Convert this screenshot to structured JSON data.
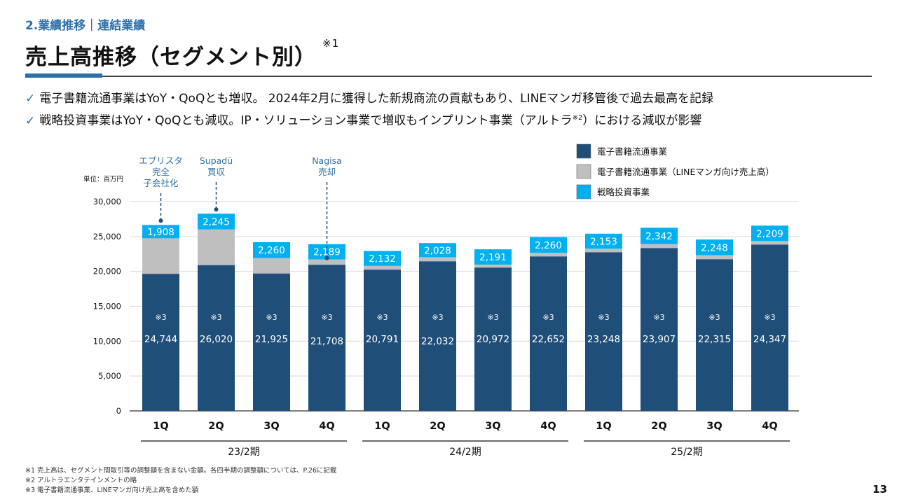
{
  "header": {
    "section": "2.業績推移｜連結業績",
    "title": "売上高推移（セグメント別）",
    "title_note": "※1"
  },
  "bullets": [
    {
      "check": "✓",
      "text": "電子書籍流通事業はYoY・QoQとも増収。 2024年2月に獲得した新規商流の貢献もあり、LINEマンガ移管後で過去最高を記録"
    },
    {
      "check": "✓",
      "text": "戦略投資事業はYoY・QoQとも減収。IP・ソリューション事業で増収もインプリント事業（アルトラ",
      "sup": "※2",
      "tail": "）における減収が影響"
    }
  ],
  "chart_data": {
    "type": "bar",
    "stacked": true,
    "unit_label": "単位：百万円",
    "ylim": [
      0,
      30000
    ],
    "yticks": [
      0,
      5000,
      10000,
      15000,
      20000,
      25000,
      30000
    ],
    "ytick_labels": [
      "0",
      "5,000",
      "10,000",
      "15,000",
      "20,000",
      "25,000",
      "30,000"
    ],
    "categories": [
      "1Q",
      "2Q",
      "3Q",
      "4Q",
      "1Q",
      "2Q",
      "3Q",
      "4Q",
      "1Q",
      "2Q",
      "3Q",
      "4Q"
    ],
    "periods": [
      {
        "label": "23/2期",
        "start": 0,
        "end": 3
      },
      {
        "label": "24/2期",
        "start": 4,
        "end": 7
      },
      {
        "label": "25/2期",
        "start": 8,
        "end": 11
      }
    ],
    "series": [
      {
        "name": "電子書籍流通事業",
        "color": "#1f4e79",
        "values": [
          19650,
          20900,
          19700,
          20950,
          20250,
          21450,
          20550,
          22150,
          22750,
          23350,
          21750,
          23850
        ]
      },
      {
        "name": "電子書籍流通事業（LINEマンガ向け売上高）",
        "color": "#bfbfbf",
        "values": [
          5094,
          5120,
          2225,
          758,
          541,
          582,
          422,
          502,
          498,
          557,
          565,
          497
        ]
      },
      {
        "name": "戦略投資事業",
        "color": "#00b0f0",
        "values": [
          1908,
          2245,
          2260,
          2189,
          2132,
          2028,
          2191,
          2260,
          2153,
          2342,
          2248,
          2209
        ]
      }
    ],
    "combined_note": "※3",
    "combined_labels": [
      "24,744",
      "26,020",
      "21,925",
      "21,708",
      "20,791",
      "22,032",
      "20,972",
      "22,652",
      "23,248",
      "23,907",
      "22,315",
      "24,347"
    ],
    "top_labels": [
      "1,908",
      "2,245",
      "2,260",
      "2,189",
      "2,132",
      "2,028",
      "2,191",
      "2,260",
      "2,153",
      "2,342",
      "2,248",
      "2,209"
    ],
    "annotations": [
      {
        "index": 0,
        "lines": [
          "エブリスタ",
          "完全",
          "子会社化"
        ]
      },
      {
        "index": 1,
        "lines": [
          "Supadü",
          "買収"
        ]
      },
      {
        "index": 3,
        "lines": [
          "Nagisa",
          "売却"
        ]
      }
    ]
  },
  "footnotes": [
    "※1 売上高は、セグメント間取引等の調整額を含まない金額。各四半期の調整額については、P.26に記載",
    "※2 アルトラエンタテインメントの略",
    "※3 電子書籍流通事業、LINEマンガ向け売上高を含めた額"
  ],
  "page_number": "13"
}
